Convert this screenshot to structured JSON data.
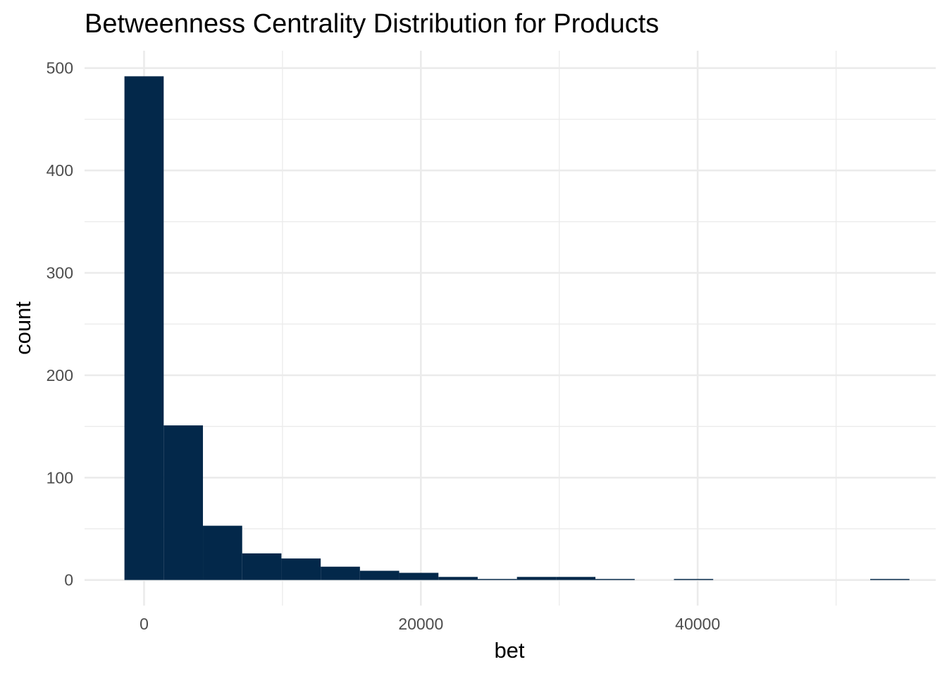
{
  "chart_data": {
    "type": "bar",
    "title": "Betweenness Centrality Distribution for Products",
    "xlabel": "bet",
    "ylabel": "count",
    "bar_color": "#03284a",
    "background": "#ffffff",
    "grid_color": "#ebebeb",
    "grid": true,
    "legend": "none",
    "bin_width": 2836,
    "xlim": [
      -4300,
      57200
    ],
    "ylim": [
      -25,
      517
    ],
    "x_major_ticks": [
      0,
      20000,
      40000
    ],
    "x_minor_ticks": [
      10000,
      30000,
      50000
    ],
    "y_major_ticks": [
      0,
      100,
      200,
      300,
      400,
      500
    ],
    "y_minor_ticks": [
      50,
      150,
      250,
      350,
      450
    ],
    "bins": [
      {
        "x_start": -1418,
        "x_end": 1418,
        "count": 492
      },
      {
        "x_start": 1418,
        "x_end": 4254,
        "count": 151
      },
      {
        "x_start": 4254,
        "x_end": 7090,
        "count": 53
      },
      {
        "x_start": 7090,
        "x_end": 9926,
        "count": 26
      },
      {
        "x_start": 9926,
        "x_end": 12762,
        "count": 21
      },
      {
        "x_start": 12762,
        "x_end": 15598,
        "count": 13
      },
      {
        "x_start": 15598,
        "x_end": 18434,
        "count": 9
      },
      {
        "x_start": 18434,
        "x_end": 21270,
        "count": 7
      },
      {
        "x_start": 21270,
        "x_end": 24106,
        "count": 3
      },
      {
        "x_start": 24106,
        "x_end": 26942,
        "count": 1
      },
      {
        "x_start": 26942,
        "x_end": 29778,
        "count": 3
      },
      {
        "x_start": 29778,
        "x_end": 32614,
        "count": 3
      },
      {
        "x_start": 32614,
        "x_end": 35450,
        "count": 1
      },
      {
        "x_start": 35450,
        "x_end": 38286,
        "count": 0
      },
      {
        "x_start": 38286,
        "x_end": 41122,
        "count": 1
      },
      {
        "x_start": 41122,
        "x_end": 43958,
        "count": 0
      },
      {
        "x_start": 43958,
        "x_end": 46794,
        "count": 0
      },
      {
        "x_start": 46794,
        "x_end": 49630,
        "count": 0
      },
      {
        "x_start": 49630,
        "x_end": 52466,
        "count": 0
      },
      {
        "x_start": 52466,
        "x_end": 55302,
        "count": 1
      }
    ]
  }
}
